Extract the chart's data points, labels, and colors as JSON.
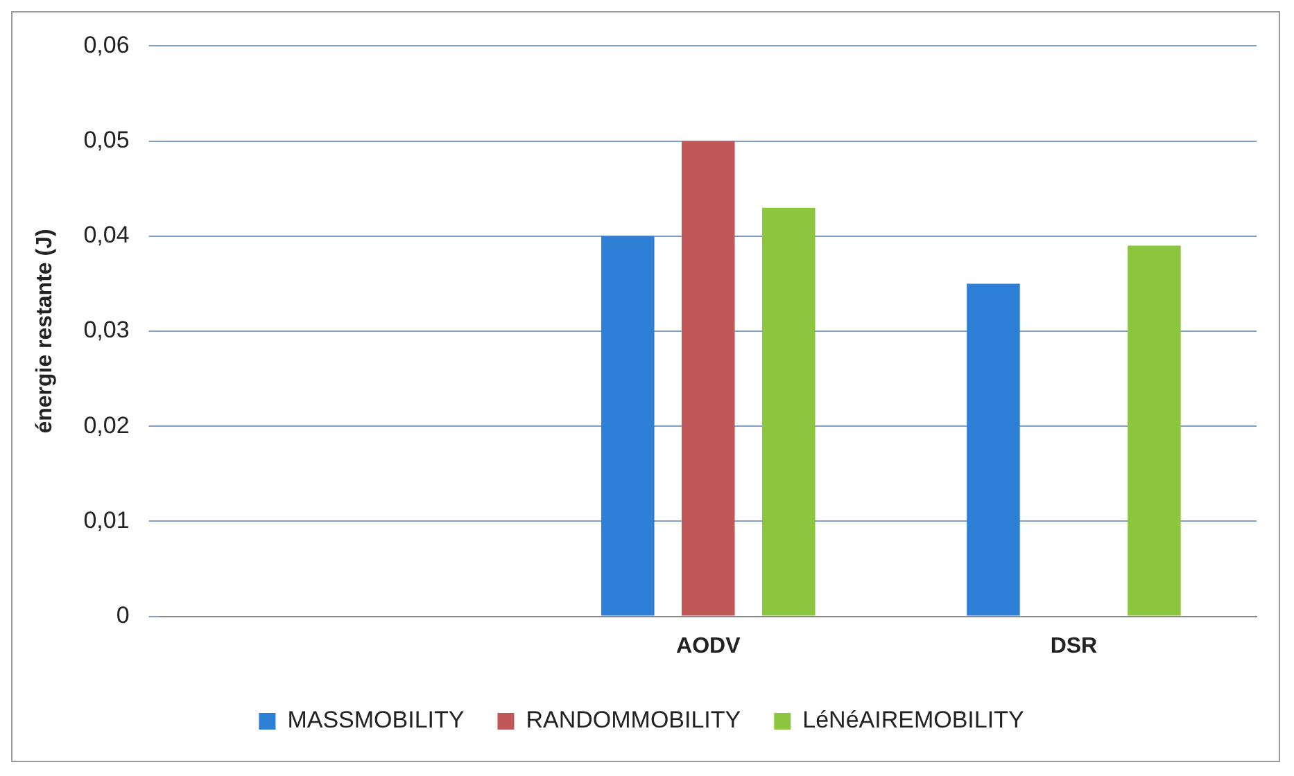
{
  "chart_data": {
    "type": "bar",
    "ylabel": "énergie restante (J)",
    "categories": [
      null,
      "AODV",
      "DSR"
    ],
    "series": [
      {
        "name": "MASSMOBILITY",
        "color": "#2e7fd6",
        "values": [
          null,
          0.04,
          0.035
        ]
      },
      {
        "name": "RANDOMMOBILITY",
        "color": "#c0585a",
        "values": [
          null,
          0.05,
          null
        ]
      },
      {
        "name": "LéNéAIREMOBILITY",
        "color": "#8cc63f",
        "values": [
          null,
          0.043,
          0.039
        ]
      }
    ],
    "ylim": [
      0,
      0.06
    ],
    "yticks": [
      0,
      {
        "value": 0.01,
        "label": "0,01"
      },
      {
        "value": 0.02,
        "label": "0,02"
      },
      {
        "value": 0.03,
        "label": "0,03"
      },
      {
        "value": 0.04,
        "label": "0,04"
      },
      {
        "value": 0.05,
        "label": "0,05"
      },
      {
        "value": 0.06,
        "label": "0,06"
      }
    ],
    "grid": "y",
    "legend": "bottom"
  }
}
